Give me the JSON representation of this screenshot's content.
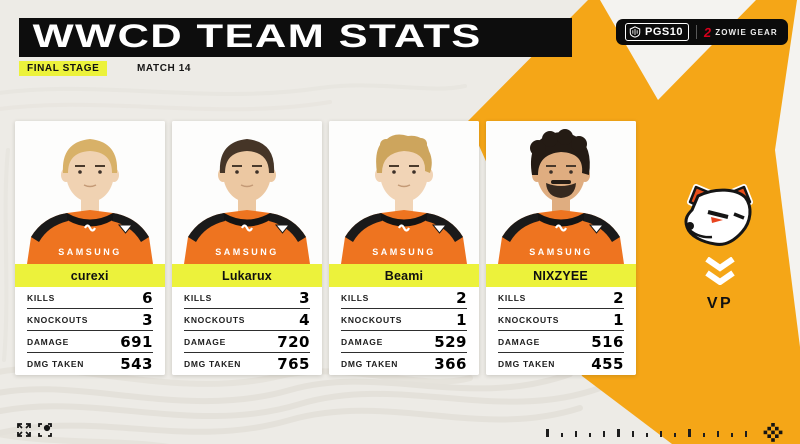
{
  "header": {
    "title": "WWCD TEAM STATS",
    "stage_badge": "FINAL STAGE",
    "match_label": "MATCH 14"
  },
  "sponsors": {
    "event_logo_text": "PGS10",
    "event_logo_icon": "pgs-crest-icon",
    "partner_logo_text": "ZOWIE GEAR",
    "partner_logo_icon": "zowie-2-icon"
  },
  "team": {
    "tag": "VP",
    "logo_icon": "virtus-pro-bear-logo",
    "chevrons_icon": "double-chevron-down-icon"
  },
  "jersey_brand": "SAMSUNG",
  "stat_labels": [
    "KILLS",
    "KNOCKOUTS",
    "DAMAGE",
    "DMG TAKEN"
  ],
  "players": [
    {
      "name": "curexi",
      "stats": [
        6,
        3,
        691,
        543
      ],
      "hair": "#d8b168",
      "skin": "#f0d2b2",
      "hair_style": "short",
      "facial_hair": false
    },
    {
      "name": "Lukarux",
      "stats": [
        3,
        4,
        720,
        765
      ],
      "hair": "#453527",
      "skin": "#ecc8a2",
      "hair_style": "short",
      "facial_hair": false
    },
    {
      "name": "Beami",
      "stats": [
        2,
        1,
        529,
        366
      ],
      "hair": "#cda55d",
      "skin": "#f1d4b6",
      "hair_style": "messy",
      "facial_hair": false
    },
    {
      "name": "NIXZYEE",
      "stats": [
        2,
        1,
        516,
        455
      ],
      "hair": "#241b14",
      "skin": "#dfad80",
      "hair_style": "curly",
      "facial_hair": true
    }
  ],
  "footer": {
    "left_icons": [
      "expand-arrows-icon",
      "record-frame-icon"
    ],
    "right_icon": "checkered-flower-icon",
    "tick_count": 15
  },
  "colors": {
    "background": "#edebe6",
    "accent_orange": "#f5a617",
    "wedge_white": "#f4f3f0",
    "badge_yellow": "#ecf23b",
    "jersey_orange": "#ee7420",
    "zowie_red": "#d6001c",
    "ink_black": "#0d0d0d"
  }
}
